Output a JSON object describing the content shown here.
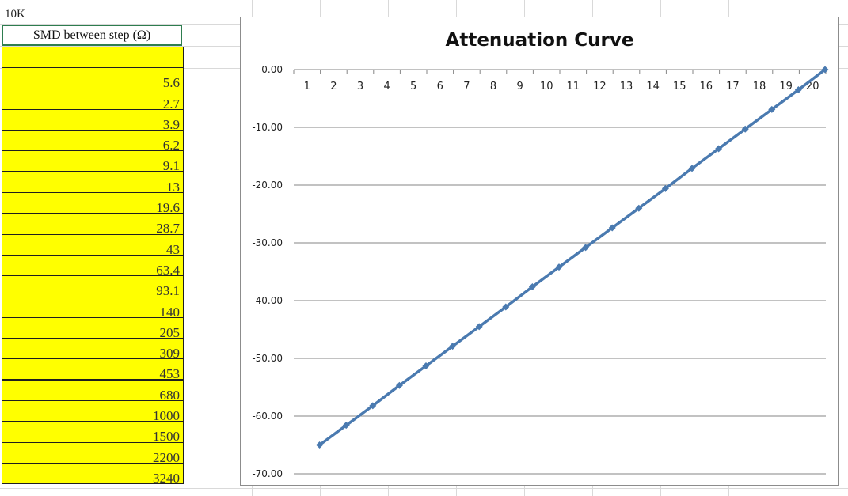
{
  "sheet": {
    "cell_label": "10K",
    "header": "SMD between step (Ω)",
    "values": [
      "",
      "5.6",
      "2.7",
      "3.9",
      "6.2",
      "9.1",
      "13",
      "19.6",
      "28.7",
      "43",
      "63.4",
      "93.1",
      "140",
      "205",
      "309",
      "453",
      "680",
      "1000",
      "1500",
      "2200",
      "3240"
    ]
  },
  "chart_data": {
    "type": "line",
    "title": "Attenuation Curve",
    "x": [
      1,
      2,
      3,
      4,
      5,
      6,
      7,
      8,
      9,
      10,
      11,
      12,
      13,
      14,
      15,
      16,
      17,
      18,
      19,
      20
    ],
    "series": [
      {
        "values": [
          -65.0,
          -61.6,
          -58.2,
          -54.7,
          -51.3,
          -47.9,
          -44.5,
          -41.1,
          -37.6,
          -34.2,
          -30.8,
          -27.4,
          -24.0,
          -20.6,
          -17.1,
          -13.7,
          -10.3,
          -6.9,
          -3.5,
          0.0
        ]
      }
    ],
    "ylim": [
      -70,
      0
    ],
    "yticks": [
      "0.00",
      "-10.00",
      "-20.00",
      "-30.00",
      "-40.00",
      "-50.00",
      "-60.00",
      "-70.00"
    ],
    "grid": true,
    "color": "#4a7ab0"
  }
}
